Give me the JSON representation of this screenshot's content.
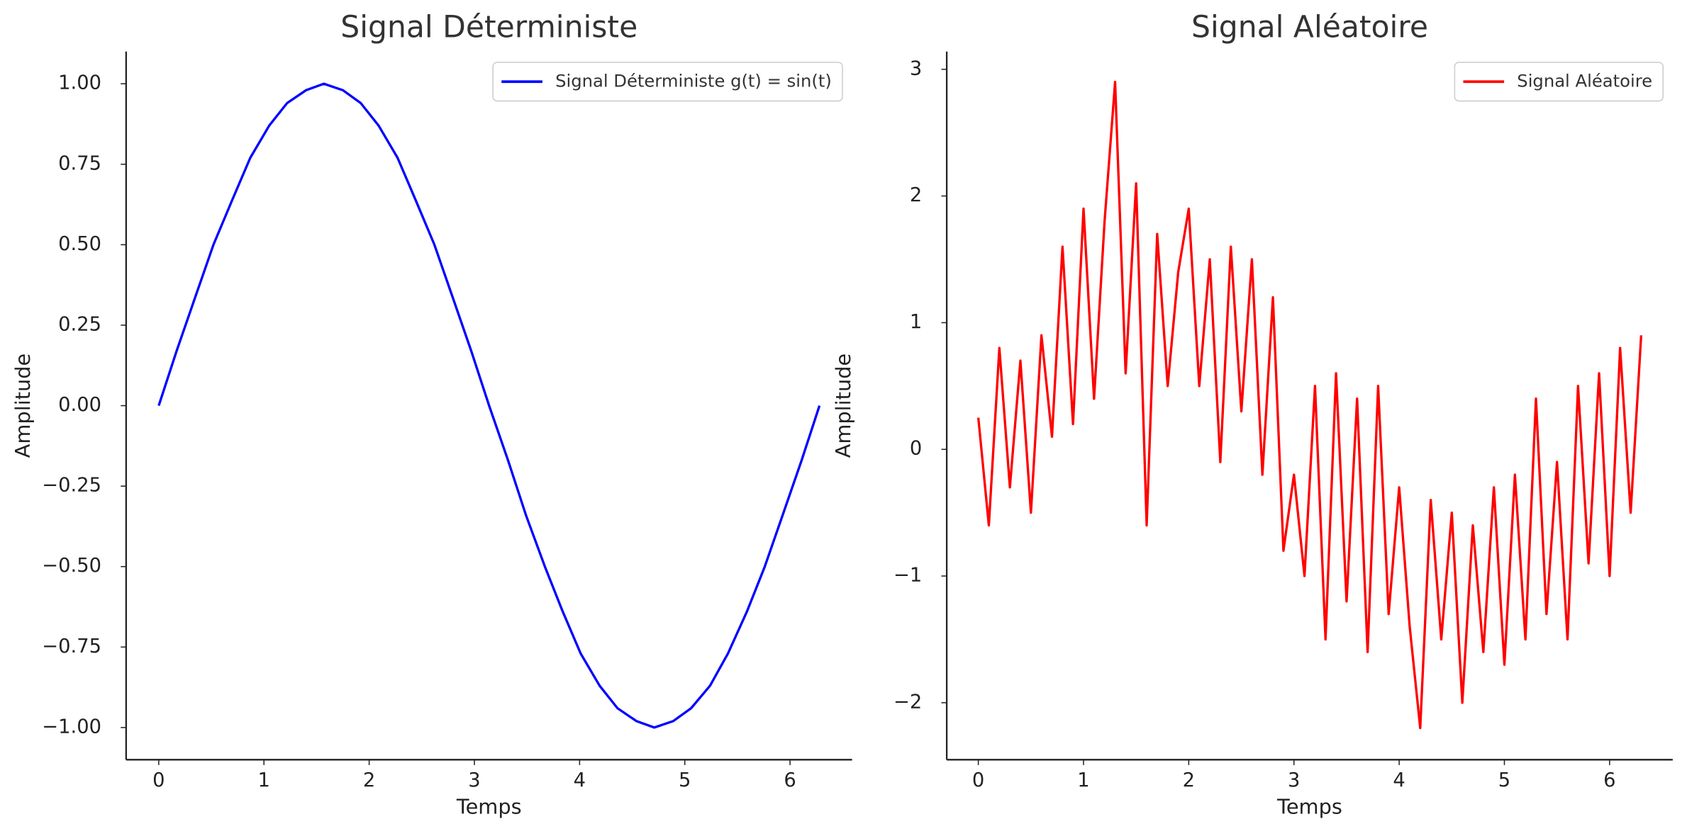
{
  "chart_data": [
    {
      "type": "line",
      "title": "Signal Déterministe",
      "xlabel": "Temps",
      "ylabel": "Amplitude",
      "x": [
        0,
        0.17,
        0.35,
        0.52,
        0.7,
        0.87,
        1.05,
        1.22,
        1.4,
        1.57,
        1.75,
        1.92,
        2.09,
        2.27,
        2.44,
        2.62,
        2.79,
        2.97,
        3.14,
        3.32,
        3.49,
        3.67,
        3.84,
        4.01,
        4.19,
        4.36,
        4.54,
        4.71,
        4.89,
        5.06,
        5.24,
        5.41,
        5.59,
        5.76,
        5.93,
        6.11,
        6.28
      ],
      "series": [
        {
          "name": "Signal Déterministe g(t) = sin(t)",
          "color": "#0000ff",
          "values": [
            0,
            0.17,
            0.34,
            0.5,
            0.64,
            0.77,
            0.87,
            0.94,
            0.98,
            1,
            0.98,
            0.94,
            0.87,
            0.77,
            0.64,
            0.5,
            0.34,
            0.17,
            0,
            -0.17,
            -0.34,
            -0.5,
            -0.64,
            -0.77,
            -0.87,
            -0.94,
            -0.98,
            -1,
            -0.98,
            -0.94,
            -0.87,
            -0.77,
            -0.64,
            -0.5,
            -0.34,
            -0.17,
            0
          ]
        }
      ],
      "xlim": [
        -0.31,
        6.59
      ],
      "ylim": [
        -1.1,
        1.1
      ],
      "xticks": [
        0,
        1,
        2,
        3,
        4,
        5,
        6
      ],
      "yticks": [
        {
          "value": 1,
          "label": "1.00"
        },
        {
          "value": 0.75,
          "label": "0.75"
        },
        {
          "value": 0.5,
          "label": "0.50"
        },
        {
          "value": 0.25,
          "label": "0.25"
        },
        {
          "value": 0,
          "label": "0.00"
        },
        {
          "value": -0.25,
          "label": "−0.25"
        },
        {
          "value": -0.5,
          "label": "−0.50"
        },
        {
          "value": -0.75,
          "label": "−0.75"
        },
        {
          "value": -1,
          "label": "−1.00"
        }
      ],
      "legend": "upper right",
      "grid": false
    },
    {
      "type": "line",
      "title": "Signal Aléatoire",
      "xlabel": "Temps",
      "ylabel": "Amplitude",
      "x": [
        0,
        0.1,
        0.2,
        0.3,
        0.4,
        0.5,
        0.6,
        0.7,
        0.8,
        0.9,
        1.0,
        1.1,
        1.2,
        1.3,
        1.4,
        1.5,
        1.6,
        1.7,
        1.8,
        1.9,
        2.0,
        2.1,
        2.2,
        2.3,
        2.4,
        2.5,
        2.6,
        2.7,
        2.8,
        2.9,
        3.0,
        3.1,
        3.2,
        3.3,
        3.4,
        3.5,
        3.6,
        3.7,
        3.8,
        3.9,
        4.0,
        4.1,
        4.2,
        4.3,
        4.4,
        4.5,
        4.6,
        4.7,
        4.8,
        4.9,
        5.0,
        5.1,
        5.2,
        5.3,
        5.4,
        5.5,
        5.6,
        5.7,
        5.8,
        5.9,
        6.0,
        6.1,
        6.2,
        6.3
      ],
      "series": [
        {
          "name": "Signal Aléatoire",
          "color": "#ff0000",
          "values": [
            0.25,
            -0.6,
            0.8,
            -0.3,
            0.7,
            -0.5,
            0.9,
            0.1,
            1.6,
            0.2,
            1.9,
            0.4,
            1.8,
            2.9,
            0.6,
            2.1,
            -0.6,
            1.7,
            0.5,
            1.4,
            1.9,
            0.5,
            1.5,
            -0.1,
            1.6,
            0.3,
            1.5,
            -0.2,
            1.2,
            -0.8,
            -0.2,
            -1.0,
            0.5,
            -1.5,
            0.6,
            -1.2,
            0.4,
            -1.6,
            0.5,
            -1.3,
            -0.3,
            -1.4,
            -2.2,
            -0.4,
            -1.5,
            -0.5,
            -2.0,
            -0.6,
            -1.6,
            -0.3,
            -1.7,
            -0.2,
            -1.5,
            0.4,
            -1.3,
            -0.1,
            -1.5,
            0.5,
            -0.9,
            0.6,
            -1.0,
            0.8,
            -0.5,
            0.9
          ]
        }
      ],
      "xlim": [
        -0.3,
        6.6
      ],
      "ylim": [
        -2.45,
        3.14
      ],
      "xticks": [
        0,
        1,
        2,
        3,
        4,
        5,
        6
      ],
      "yticks": [
        3,
        2,
        1,
        0,
        {
          "value": -1,
          "label": "−1"
        },
        {
          "value": -2,
          "label": "−2"
        }
      ],
      "legend": "upper right",
      "grid": false
    }
  ]
}
